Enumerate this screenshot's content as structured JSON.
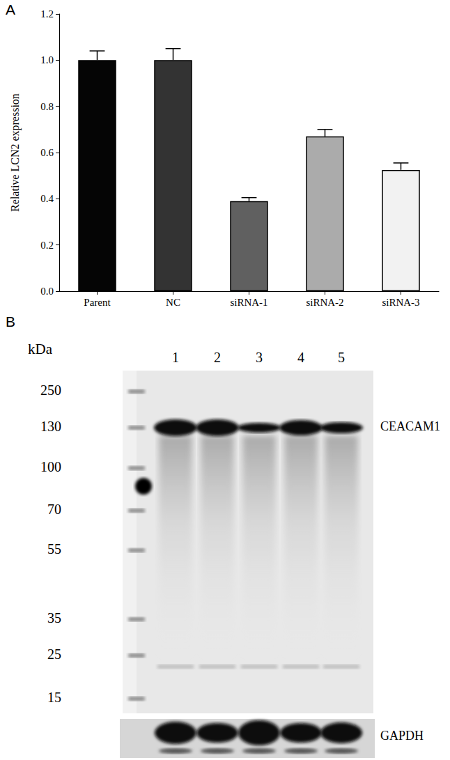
{
  "chart_data": {
    "type": "bar",
    "categories": [
      "Parent",
      "NC",
      "siRNA-1",
      "siRNA-2",
      "siRNA-3"
    ],
    "values": [
      1.0,
      1.0,
      0.39,
      0.67,
      0.525
    ],
    "errors": [
      0.04,
      0.05,
      0.015,
      0.03,
      0.03
    ],
    "colors": [
      "#050505",
      "#333333",
      "#606060",
      "#ababab",
      "#f2f2f2"
    ],
    "ylabel": "Relative LCN2 expression",
    "ylim": [
      0,
      1.2
    ],
    "yticks": [
      {
        "value": 0,
        "label": "0.0"
      },
      0.2,
      0.4,
      0.6,
      0.8,
      {
        "value": 1,
        "label": "1.0"
      },
      1.2
    ],
    "grid": false
  },
  "panel_labels": [
    "A",
    "B"
  ],
  "blot": {
    "unit": "kDa",
    "markers": [
      250,
      130,
      100,
      70,
      55,
      35,
      25,
      15
    ],
    "lanes": [
      "1",
      "2",
      "3",
      "4",
      "5"
    ],
    "bands": [
      "CEACAM1",
      "GAPDH"
    ]
  }
}
